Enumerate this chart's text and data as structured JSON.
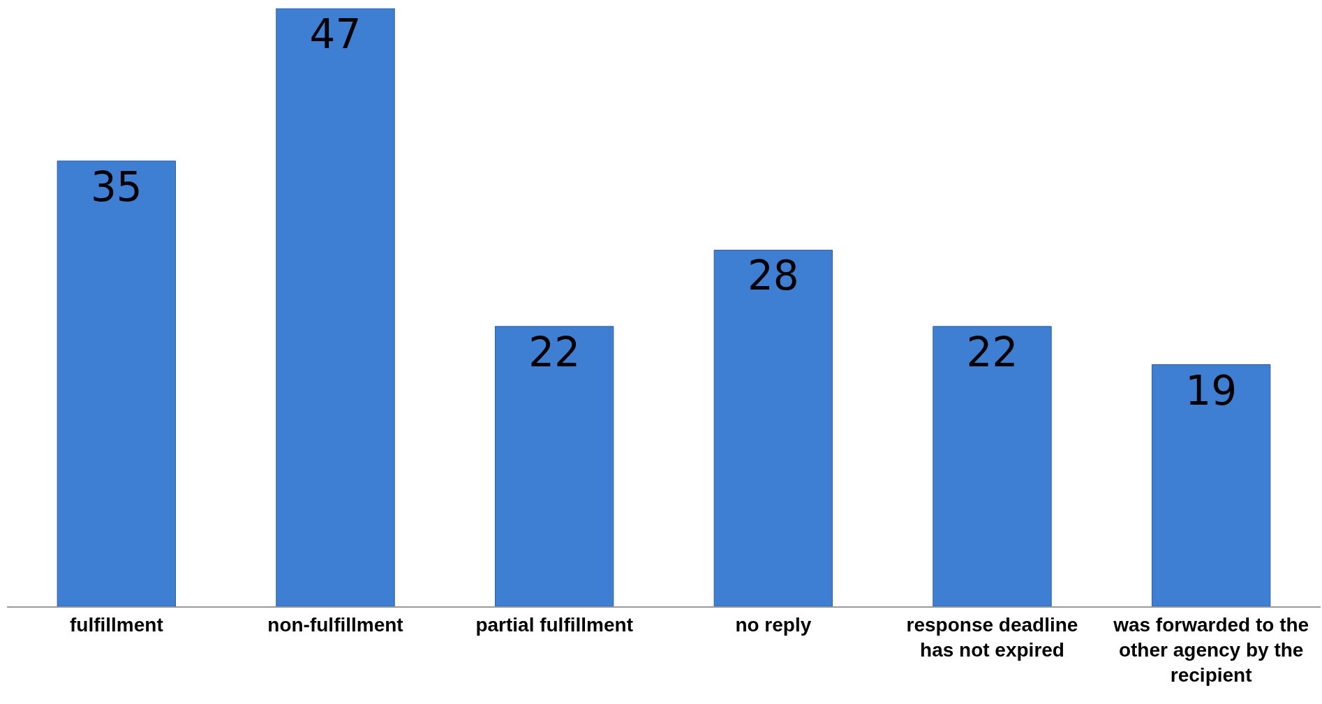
{
  "chart_data": {
    "type": "bar",
    "categories": [
      "fulfillment",
      "non-fulfillment",
      "partial fulfillment",
      "no reply",
      "response deadline has not expired",
      "was forwarded to the other agency by the recipient"
    ],
    "values": [
      35,
      47,
      22,
      28,
      22,
      19
    ],
    "color": "#3f7fd3",
    "ylim": [
      0,
      47
    ],
    "data_labels": true
  }
}
